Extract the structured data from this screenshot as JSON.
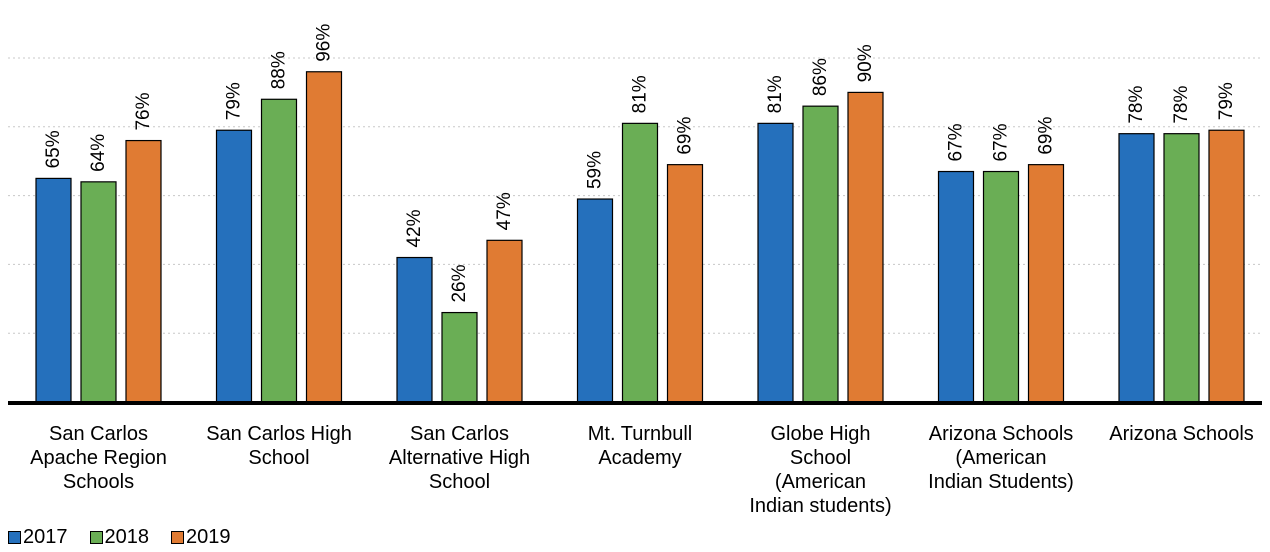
{
  "chart_data": {
    "type": "bar",
    "title": "",
    "xlabel": "",
    "ylabel": "",
    "ylim": [
      0,
      100
    ],
    "grid": true,
    "legend_position": "bottom-left",
    "categories": [
      "San Carlos\nApache Region\nSchools",
      "San Carlos High\nSchool",
      "San Carlos\nAlternative High\nSchool",
      "Mt. Turnbull\nAcademy",
      "Globe High\nSchool\n(American\nIndian students)",
      "Arizona Schools\n(American\nIndian Students)",
      "Arizona Schools"
    ],
    "series": [
      {
        "name": "2017",
        "color": "#2570BC",
        "values": [
          65,
          79,
          42,
          59,
          81,
          67,
          78
        ],
        "labels": [
          "65%",
          "79%",
          "42%",
          "59%",
          "81%",
          "67%",
          "78%"
        ]
      },
      {
        "name": "2018",
        "color": "#6AAE55",
        "values": [
          64,
          88,
          26,
          81,
          86,
          67,
          78
        ],
        "labels": [
          "64%",
          "88%",
          "26%",
          "81%",
          "86%",
          "67%",
          "78%"
        ]
      },
      {
        "name": "2019",
        "color": "#E07B33",
        "values": [
          76,
          96,
          47,
          69,
          90,
          69,
          79
        ],
        "labels": [
          "76%",
          "96%",
          "47%",
          "69%",
          "90%",
          "69%",
          "79%"
        ]
      }
    ]
  }
}
